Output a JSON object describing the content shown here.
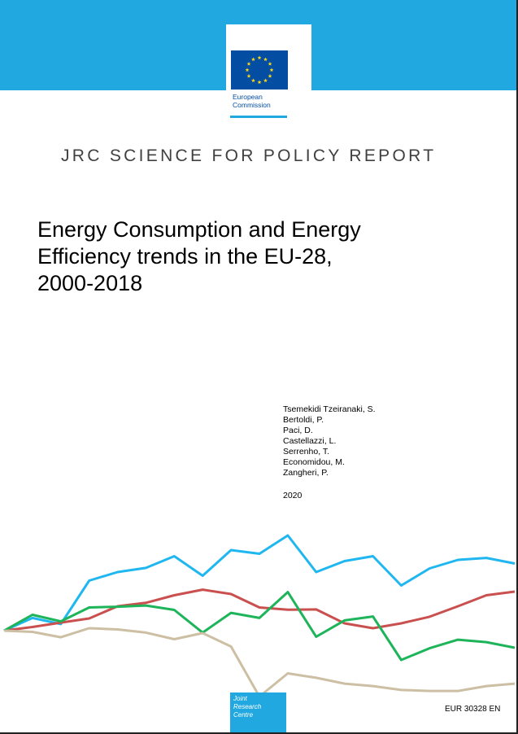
{
  "header": {
    "brand_color": "#22a8e1",
    "logo_caption": [
      "European",
      "Commission"
    ],
    "flag_icon": "eu-flag-icon"
  },
  "report_type": "JRC SCIENCE FOR POLICY REPORT",
  "title_lines": [
    "Energy Consumption and Energy",
    "Efficiency trends in the EU-28,",
    "2000-2018"
  ],
  "authors": [
    "Tsemekidi Tzeiranaki, S.",
    "Bertoldi, P.",
    "Paci, D.",
    "Castellazzi, L.",
    "Serrenho, T.",
    "Economidou, M.",
    "Zangheri, P."
  ],
  "year": "2020",
  "footer": {
    "jrc_lines": [
      "Joint",
      "Research",
      "Centre"
    ],
    "report_number": "EUR 30328 EN"
  },
  "decorative_lines": {
    "colors": [
      "#20b7f0",
      "#c9504f",
      "#1db45a",
      "#cdbfa3"
    ],
    "series": [
      [
        0,
        0.52,
        0.27,
        2.05,
        2.4,
        2.57,
        3.05,
        2.25,
        3.3,
        3.15,
        3.9,
        2.4,
        2.85,
        3.05,
        1.85,
        2.55,
        2.9,
        2.98,
        2.75
      ],
      [
        0,
        0.15,
        0.33,
        0.5,
        1.0,
        1.14,
        1.45,
        1.68,
        1.5,
        0.95,
        0.86,
        0.87,
        0.3,
        0.1,
        0.3,
        0.57,
        1.0,
        1.45,
        1.6
      ],
      [
        0,
        0.65,
        0.38,
        0.95,
        0.98,
        1.03,
        0.85,
        -0.08,
        0.73,
        0.52,
        1.58,
        -0.25,
        0.42,
        0.58,
        -1.2,
        -0.72,
        -0.37,
        -0.47,
        -0.7
      ],
      [
        0,
        -0.05,
        -0.27,
        0.1,
        0.05,
        -0.08,
        -0.35,
        -0.1,
        -0.65,
        -2.7,
        -1.75,
        -1.93,
        -2.17,
        -2.27,
        -2.43,
        -2.47,
        -2.47,
        -2.27,
        -2.17
      ]
    ]
  }
}
